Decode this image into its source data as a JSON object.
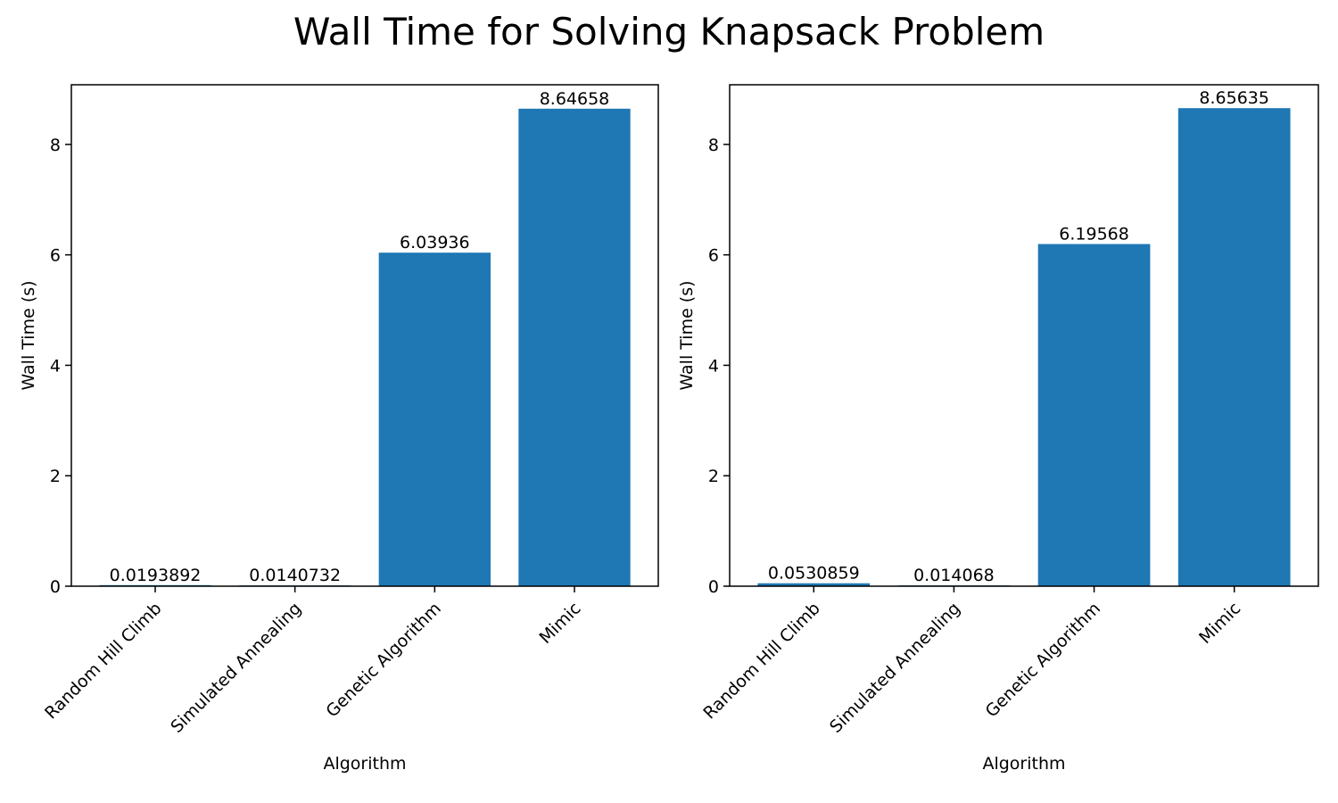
{
  "figure": {
    "title": "Wall Time for Solving Knapsack Problem"
  },
  "colors": {
    "bar": "#1f77b4",
    "axis": "#000000",
    "background": "#ffffff"
  },
  "chart_data": [
    {
      "type": "bar",
      "categories": [
        "Random Hill Climb",
        "Simulated Annealing",
        "Genetic Algorithm",
        "Mimic"
      ],
      "values": [
        0.0193892,
        0.0140732,
        6.03936,
        8.64658
      ],
      "data_labels": [
        "0.0193892",
        "0.0140732",
        "6.03936",
        "8.64658"
      ],
      "xlabel": "Algorithm",
      "ylabel": "Wall Time (s)",
      "ylim": [
        0,
        9.08
      ],
      "yticks": [
        0,
        2,
        4,
        6,
        8
      ],
      "grid": false
    },
    {
      "type": "bar",
      "categories": [
        "Random Hill Climb",
        "Simulated Annealing",
        "Genetic Algorithm",
        "Mimic"
      ],
      "values": [
        0.0530859,
        0.014068,
        6.19568,
        8.65635
      ],
      "data_labels": [
        "0.0530859",
        "0.014068",
        "6.19568",
        "8.65635"
      ],
      "xlabel": "Algorithm",
      "ylabel": "Wall Time (s)",
      "ylim": [
        0,
        9.08
      ],
      "yticks": [
        0,
        2,
        4,
        6,
        8
      ],
      "grid": false
    }
  ]
}
